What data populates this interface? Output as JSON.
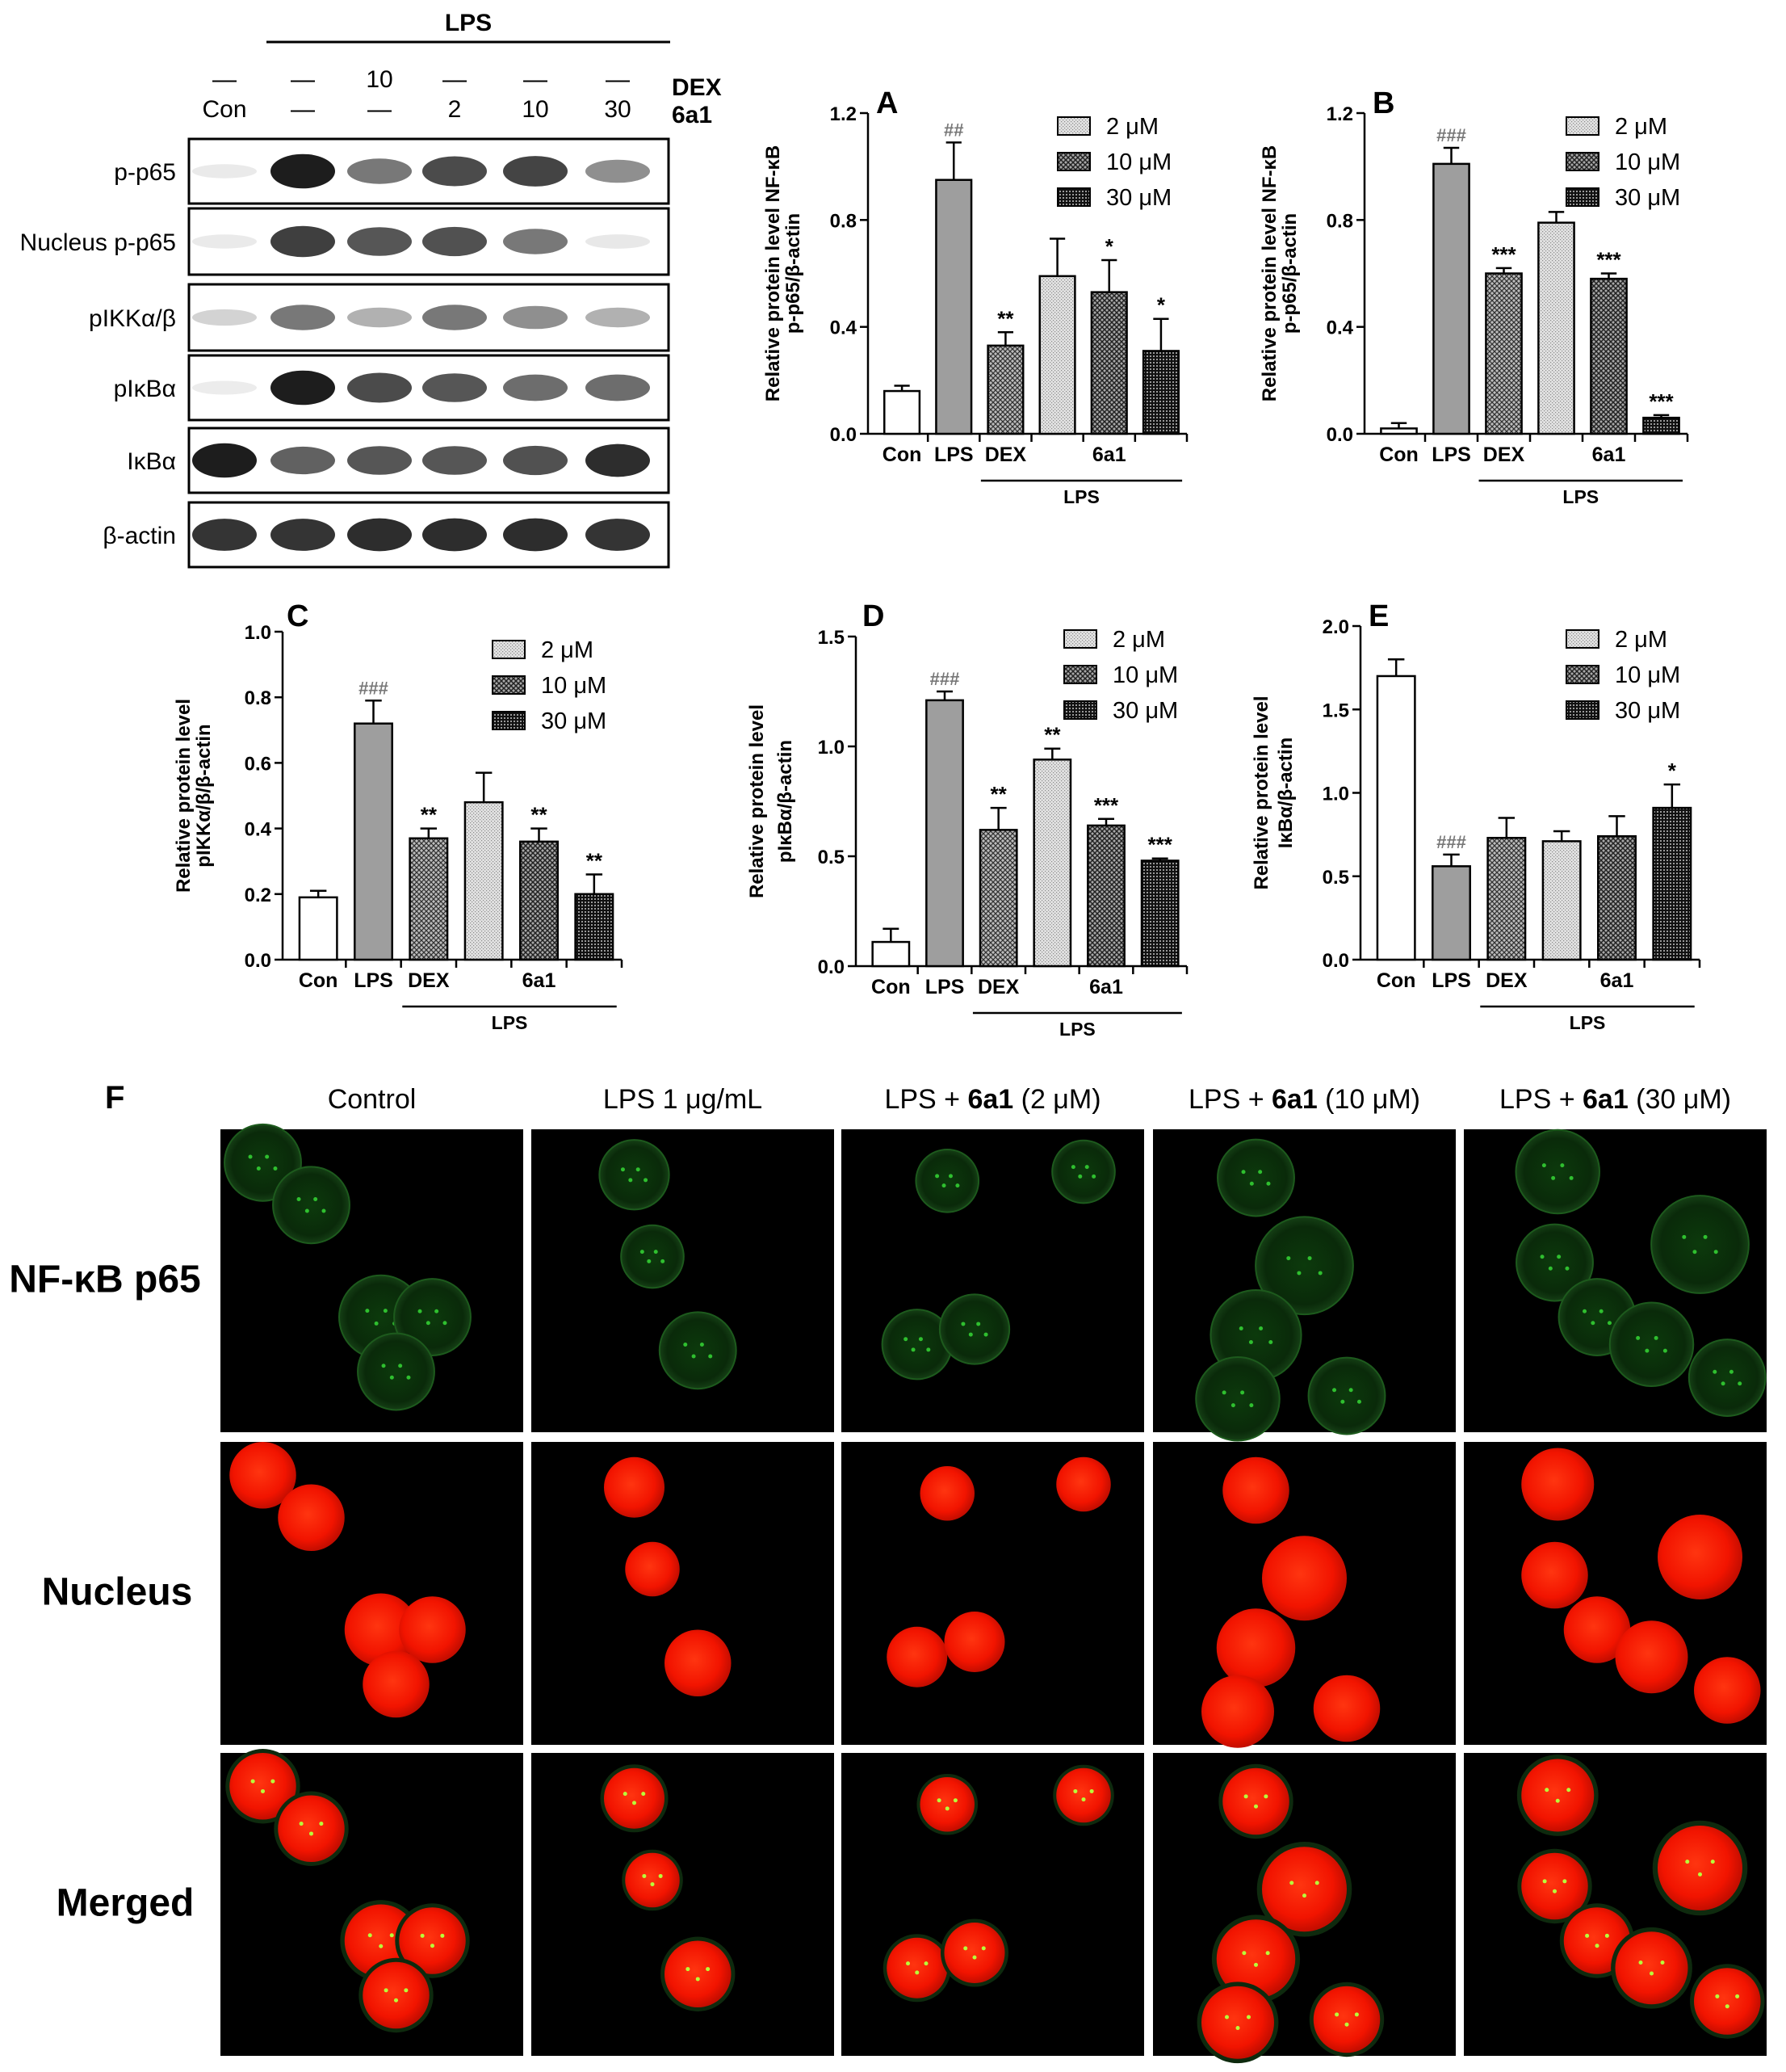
{
  "western_blot": {
    "lps_header": "LPS",
    "row_labels": [
      "DEX",
      "6a1"
    ],
    "dex_row": [
      "—",
      "—",
      "10",
      "—",
      "—",
      "—"
    ],
    "a1_row": [
      "Con",
      "—",
      "—",
      "2",
      "10",
      "30"
    ],
    "lanes_band_intensity": true,
    "blots": [
      {
        "label": "p-p65",
        "bands": [
          0.05,
          0.95,
          0.55,
          0.75,
          0.78,
          0.45
        ]
      },
      {
        "label": "Nucleus p-p65",
        "bands": [
          0.05,
          0.8,
          0.7,
          0.72,
          0.55,
          0.06
        ]
      },
      {
        "label": "pIKKα/β",
        "bands": [
          0.15,
          0.55,
          0.3,
          0.55,
          0.45,
          0.3
        ]
      },
      {
        "label": "pIκBα",
        "bands": [
          0.04,
          0.95,
          0.75,
          0.7,
          0.6,
          0.6
        ]
      },
      {
        "label": "IκBα",
        "bands": [
          0.95,
          0.65,
          0.7,
          0.7,
          0.72,
          0.88
        ]
      },
      {
        "label": "β-actin",
        "bands": [
          0.85,
          0.85,
          0.88,
          0.88,
          0.88,
          0.85
        ]
      }
    ]
  },
  "chart_data": [
    {
      "panel": "A",
      "type": "bar",
      "ylabel_lines": [
        "Relative protein level NF-κB",
        "p-p65/β-actin"
      ],
      "ylim": [
        0,
        1.2
      ],
      "yticks": [
        "0.0",
        "0.4",
        "0.8",
        "1.2"
      ],
      "categories": [
        "Con",
        "LPS",
        "DEX",
        "6a1"
      ],
      "group_label": "LPS",
      "bars": [
        {
          "value": 0.16,
          "err": 0.02,
          "fill": "white",
          "sig": ""
        },
        {
          "value": 0.95,
          "err": 0.14,
          "fill": "gray",
          "sig": "##"
        },
        {
          "value": 0.33,
          "err": 0.05,
          "fill": "dex",
          "sig": "**"
        },
        {
          "value": 0.59,
          "err": 0.14,
          "fill": "p2",
          "sig": ""
        },
        {
          "value": 0.53,
          "err": 0.12,
          "fill": "p10",
          "sig": "*"
        },
        {
          "value": 0.31,
          "err": 0.12,
          "fill": "p30",
          "sig": "*"
        }
      ],
      "legend": [
        "2 μM",
        "10 μM",
        "30 μM"
      ]
    },
    {
      "panel": "B",
      "type": "bar",
      "ylabel_lines": [
        "Relative protein level NF-κB",
        "p-p65/β-actin"
      ],
      "ylim": [
        0,
        1.2
      ],
      "yticks": [
        "0.0",
        "0.4",
        "0.8",
        "1.2"
      ],
      "categories": [
        "Con",
        "LPS",
        "DEX",
        "6a1"
      ],
      "group_label": "LPS",
      "bars": [
        {
          "value": 0.02,
          "err": 0.02,
          "fill": "white",
          "sig": ""
        },
        {
          "value": 1.01,
          "err": 0.06,
          "fill": "gray",
          "sig": "###"
        },
        {
          "value": 0.6,
          "err": 0.02,
          "fill": "dex",
          "sig": "***"
        },
        {
          "value": 0.79,
          "err": 0.04,
          "fill": "p2",
          "sig": ""
        },
        {
          "value": 0.58,
          "err": 0.02,
          "fill": "p10",
          "sig": "***"
        },
        {
          "value": 0.06,
          "err": 0.01,
          "fill": "p30",
          "sig": "***"
        }
      ],
      "legend": [
        "2 μM",
        "10 μM",
        "30 μM"
      ]
    },
    {
      "panel": "C",
      "type": "bar",
      "ylabel_lines": [
        "Relative protein level",
        "pIKKα/β/β-actin"
      ],
      "ylim": [
        0,
        1.0
      ],
      "yticks": [
        "0.0",
        "0.2",
        "0.4",
        "0.6",
        "0.8",
        "1.0"
      ],
      "categories": [
        "Con",
        "LPS",
        "DEX",
        "6a1"
      ],
      "group_label": "LPS",
      "bars": [
        {
          "value": 0.19,
          "err": 0.02,
          "fill": "white",
          "sig": ""
        },
        {
          "value": 0.72,
          "err": 0.07,
          "fill": "gray",
          "sig": "###"
        },
        {
          "value": 0.37,
          "err": 0.03,
          "fill": "dex",
          "sig": "**"
        },
        {
          "value": 0.48,
          "err": 0.09,
          "fill": "p2",
          "sig": ""
        },
        {
          "value": 0.36,
          "err": 0.04,
          "fill": "p10",
          "sig": "**"
        },
        {
          "value": 0.2,
          "err": 0.06,
          "fill": "p30",
          "sig": "**"
        }
      ],
      "legend": [
        "2 μM",
        "10 μM",
        "30 μM"
      ]
    },
    {
      "panel": "D",
      "type": "bar",
      "ylabel_lines": [
        "Relative protein level",
        "pIκBα/β-actin"
      ],
      "ylim": [
        0,
        1.5
      ],
      "yticks": [
        "0.0",
        "0.5",
        "1.0",
        "1.5"
      ],
      "categories": [
        "Con",
        "LPS",
        "DEX",
        "6a1"
      ],
      "group_label": "LPS",
      "bars": [
        {
          "value": 0.11,
          "err": 0.06,
          "fill": "white",
          "sig": ""
        },
        {
          "value": 1.21,
          "err": 0.04,
          "fill": "gray",
          "sig": "###"
        },
        {
          "value": 0.62,
          "err": 0.1,
          "fill": "dex",
          "sig": "**"
        },
        {
          "value": 0.94,
          "err": 0.05,
          "fill": "p2",
          "sig": "**"
        },
        {
          "value": 0.64,
          "err": 0.03,
          "fill": "p10",
          "sig": "***"
        },
        {
          "value": 0.48,
          "err": 0.01,
          "fill": "p30",
          "sig": "***"
        }
      ],
      "legend": [
        "2 μM",
        "10 μM",
        "30 μM"
      ]
    },
    {
      "panel": "E",
      "type": "bar",
      "ylabel_lines": [
        "Relative protein level",
        "IκBα/β-actin"
      ],
      "ylim": [
        0,
        2.0
      ],
      "yticks": [
        "0.0",
        "0.5",
        "1.0",
        "1.5",
        "2.0"
      ],
      "categories": [
        "Con",
        "LPS",
        "DEX",
        "6a1"
      ],
      "group_label": "LPS",
      "bars": [
        {
          "value": 1.7,
          "err": 0.1,
          "fill": "white",
          "sig": ""
        },
        {
          "value": 0.56,
          "err": 0.07,
          "fill": "gray",
          "sig": "###"
        },
        {
          "value": 0.73,
          "err": 0.12,
          "fill": "dex",
          "sig": ""
        },
        {
          "value": 0.71,
          "err": 0.06,
          "fill": "p2",
          "sig": ""
        },
        {
          "value": 0.74,
          "err": 0.12,
          "fill": "p10",
          "sig": ""
        },
        {
          "value": 0.91,
          "err": 0.14,
          "fill": "p30",
          "sig": "*"
        }
      ],
      "legend": [
        "2 μM",
        "10 μM",
        "30 μM"
      ]
    }
  ],
  "microscopy": {
    "panel": "F",
    "columns": [
      "Control",
      "LPS 1 μg/mL",
      "LPS + 6a1 (2 μM)",
      "LPS + 6a1 (10 μM)",
      "LPS + 6a1 (30 μM)"
    ],
    "rows": [
      "NF-κB p65",
      "Nucleus",
      "Merged"
    ],
    "colors": {
      "green": "#2fbf2f",
      "red": "#ff1a00"
    }
  }
}
